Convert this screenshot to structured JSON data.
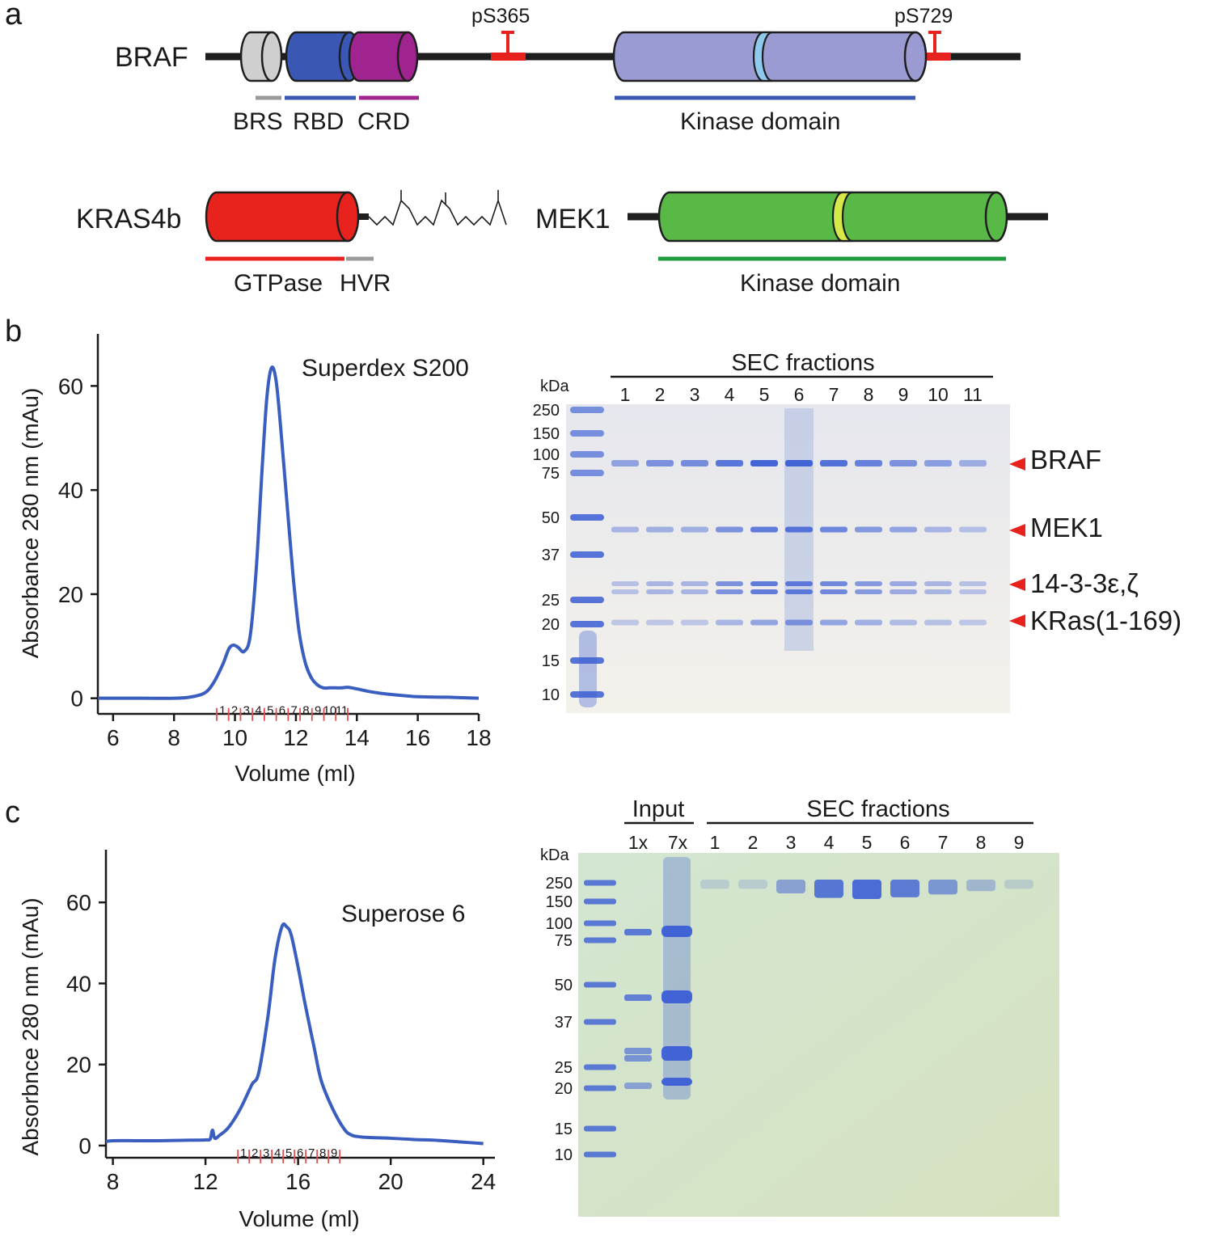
{
  "panels": {
    "a": "a",
    "b": "b",
    "c": "c"
  },
  "colors": {
    "linker": "#1e1e1e",
    "brs": "#cfcfcf",
    "rbd": "#3a58b3",
    "crd": "#a0248f",
    "braf_kinase": "#9b9bd3",
    "braf_kinase_light": "#8fc9ee",
    "phospho": "#e8221c",
    "kras": "#e8221c",
    "hvr": "#9b9b9b",
    "mek1": "#58b947",
    "mek1_light": "#d4e94a",
    "mek1_underline": "#1f9a3c",
    "trace": "#3a5ec0",
    "fraction_tick": "#e05050",
    "gel_b": "#efeee7",
    "gel_c": "#d5e4c7",
    "marker_blue": "#3b5ed5",
    "arrow": "#e8221c"
  },
  "panel_a": {
    "braf": {
      "label": "BRAF",
      "phospho_sites": [
        "pS365",
        "pS729"
      ],
      "domains": [
        "BRS",
        "RBD",
        "CRD"
      ],
      "kinase_label": "Kinase domain"
    },
    "kras": {
      "label": "KRAS4b",
      "domains": [
        "GTPase",
        "HVR"
      ]
    },
    "mek1": {
      "label": "MEK1",
      "kinase_label": "Kinase domain"
    }
  },
  "panel_b": {
    "column_label": "Superdex S200",
    "fraction_numbers": [
      "1",
      "2",
      "3",
      "4",
      "5",
      "6",
      "7",
      "8",
      "9",
      "10",
      "11"
    ],
    "gel": {
      "title": "SEC fractions",
      "kda_label": "kDa",
      "markers": [
        "250",
        "150",
        "100",
        "75",
        "50",
        "37",
        "25",
        "20",
        "15",
        "10"
      ],
      "lanes": [
        "1",
        "2",
        "3",
        "4",
        "5",
        "6",
        "7",
        "8",
        "9",
        "10",
        "11"
      ],
      "band_intensity": {
        "BRAF": [
          0.45,
          0.6,
          0.65,
          0.85,
          1.0,
          1.0,
          0.9,
          0.75,
          0.6,
          0.5,
          0.35
        ],
        "MEK1": [
          0.3,
          0.35,
          0.35,
          0.6,
          0.8,
          0.85,
          0.7,
          0.55,
          0.45,
          0.3,
          0.2
        ],
        "1433": [
          0.2,
          0.3,
          0.3,
          0.6,
          0.8,
          0.8,
          0.7,
          0.55,
          0.4,
          0.3,
          0.2
        ],
        "KRAS": [
          0.15,
          0.15,
          0.15,
          0.3,
          0.45,
          0.55,
          0.45,
          0.35,
          0.25,
          0.2,
          0.15
        ]
      },
      "protein_labels": [
        "BRAF",
        "MEK1",
        "14-3-3ε,ζ",
        "KRas(1-169)"
      ]
    }
  },
  "panel_c": {
    "column_label": "Superose 6",
    "fraction_numbers": [
      "1",
      "2",
      "3",
      "4",
      "5",
      "6",
      "7",
      "8",
      "9"
    ],
    "gel": {
      "input_title": "Input",
      "input_lanes": [
        "1x",
        "7x"
      ],
      "sec_title": "SEC fractions",
      "sec_lanes": [
        "1",
        "2",
        "3",
        "4",
        "5",
        "6",
        "7",
        "8",
        "9"
      ],
      "kda_label": "kDa",
      "markers": [
        "250",
        "150",
        "100",
        "75",
        "50",
        "37",
        "25",
        "20",
        "15",
        "10"
      ],
      "top_band_intensity": [
        0.1,
        0.1,
        0.5,
        0.9,
        1.0,
        0.85,
        0.6,
        0.3,
        0.1
      ]
    }
  },
  "chart_data": [
    {
      "type": "line",
      "title": "Superdex S200",
      "xlabel": "Volume (ml)",
      "ylabel": "Absorbance 280 nm (mAu)",
      "xlim": [
        5.5,
        18
      ],
      "ylim": [
        -3,
        70
      ],
      "xticks": [
        6,
        8,
        10,
        12,
        14,
        16,
        18
      ],
      "yticks": [
        0,
        20,
        40,
        60
      ],
      "series": [
        {
          "name": "A280",
          "x": [
            5.5,
            6,
            7,
            8,
            8.5,
            9,
            9.3,
            9.6,
            9.8,
            9.95,
            10.1,
            10.3,
            10.5,
            10.7,
            10.9,
            11.05,
            11.2,
            11.35,
            11.5,
            11.7,
            11.9,
            12.1,
            12.3,
            12.5,
            12.7,
            12.9,
            13.1,
            13.3,
            13.5,
            13.7,
            14,
            14.5,
            15,
            16,
            17,
            18
          ],
          "y": [
            0,
            0,
            0,
            0,
            0.2,
            1,
            3,
            6.5,
            9.5,
            10.2,
            9.8,
            9,
            12,
            25,
            45,
            58,
            63.5,
            61,
            52,
            38,
            24,
            13,
            7,
            4,
            2.6,
            2,
            2,
            2,
            2,
            2.1,
            1.8,
            1.2,
            0.8,
            0.3,
            0.2,
            0
          ]
        }
      ],
      "fractions": {
        "labels": [
          "1",
          "2",
          "3",
          "4",
          "5",
          "6",
          "7",
          "8",
          "9",
          "10",
          "11"
        ],
        "start": 9.4,
        "end": 13.7
      }
    },
    {
      "type": "line",
      "title": "Superose 6",
      "xlabel": "Volume (ml)",
      "ylabel": "Absorbnce 280 nm (mAu)",
      "xlim": [
        7.7,
        24.5
      ],
      "ylim": [
        -3,
        73
      ],
      "xticks": [
        8,
        12,
        16,
        20,
        24
      ],
      "yticks": [
        0,
        20,
        40,
        60
      ],
      "series": [
        {
          "name": "A280",
          "x": [
            7.7,
            8,
            9,
            10,
            11,
            12,
            12.2,
            12.3,
            12.4,
            12.6,
            13,
            13.5,
            14,
            14.3,
            14.7,
            15,
            15.3,
            15.5,
            15.7,
            16,
            16.3,
            16.7,
            17,
            17.5,
            18,
            18.3,
            18.6,
            19,
            20,
            21,
            22,
            23,
            24
          ],
          "y": [
            1,
            1.2,
            1.2,
            1.2,
            1.3,
            1.4,
            1.6,
            3.8,
            1.8,
            2.5,
            4.5,
            9,
            15,
            18,
            32,
            46,
            54,
            54,
            52,
            44,
            35,
            24,
            16,
            9,
            4,
            2.6,
            2.2,
            2,
            1.8,
            1.5,
            1.3,
            0.9,
            0.5
          ]
        }
      ],
      "fractions": {
        "labels": [
          "1",
          "2",
          "3",
          "4",
          "5",
          "6",
          "7",
          "8",
          "9"
        ],
        "start": 13.4,
        "end": 17.8
      }
    }
  ]
}
